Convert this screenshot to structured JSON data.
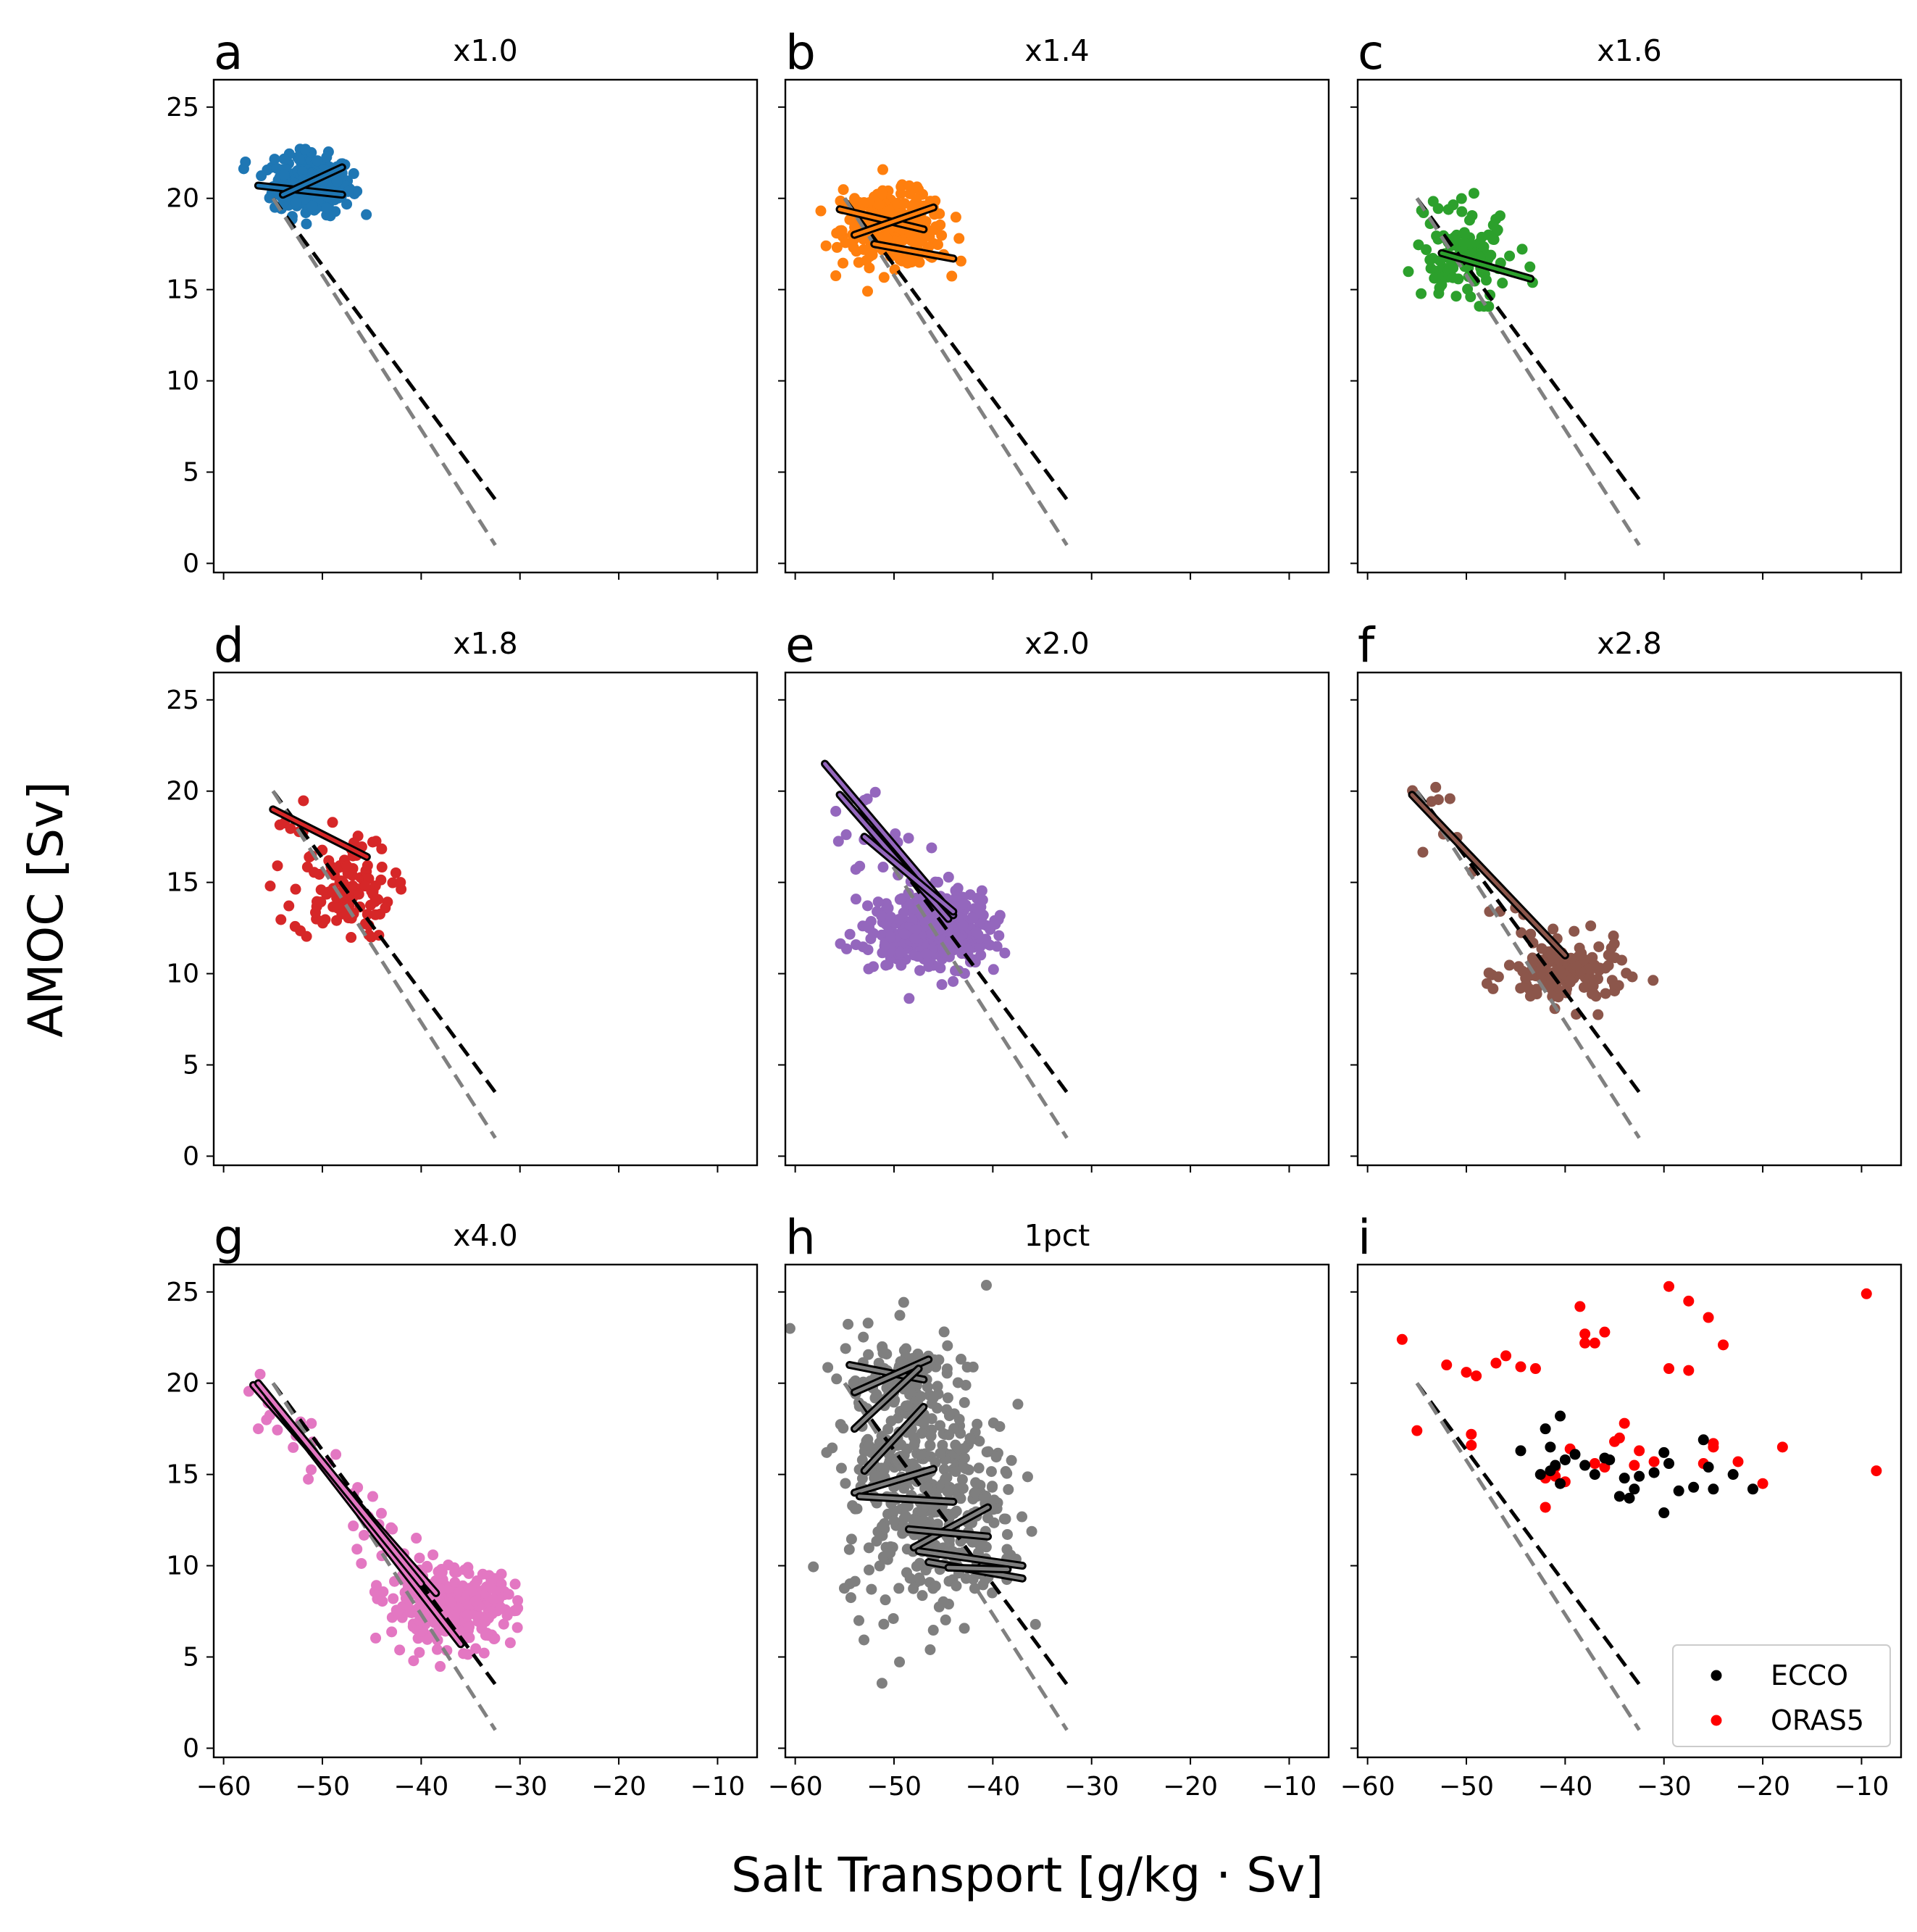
{
  "figure": {
    "xlabel": "Salt Transport [g/kg · Sv]",
    "ylabel": "AMOC [Sv]"
  },
  "chart_data": {
    "type": "scatter",
    "xlim": [
      -61,
      -6
    ],
    "ylim": [
      -0.5,
      26.5
    ],
    "x_ticks": [
      -60,
      -50,
      -40,
      -30,
      -20,
      -10
    ],
    "y_ticks": [
      0,
      5,
      10,
      15,
      20,
      25
    ],
    "x_tick_labels": [
      "−60",
      "−50",
      "−40",
      "−30",
      "−20",
      "−10"
    ],
    "y_tick_labels": [
      "0",
      "5",
      "10",
      "15",
      "20",
      "25"
    ],
    "reference_lines": [
      {
        "style": "dashed",
        "color": "#000000",
        "x": [
          -55,
          -32.5
        ],
        "y": [
          20.0,
          3.5
        ]
      },
      {
        "style": "dashed",
        "color": "#808080",
        "x": [
          -55,
          -32.5
        ],
        "y": [
          20.0,
          1.0
        ]
      }
    ],
    "panels": [
      {
        "letter": "a",
        "title": "x1.0",
        "color": "#1f77b4",
        "cluster": {
          "cx": -51,
          "cy": 20.7,
          "sx": 2.0,
          "sy": 0.8,
          "n": 220
        },
        "segments": [
          [
            -56.5,
            20.7,
            -48,
            20.2
          ],
          [
            -54,
            20.2,
            -48,
            21.7
          ]
        ]
      },
      {
        "letter": "b",
        "title": "x1.4",
        "color": "#ff7f0e",
        "cluster": {
          "cx": -50,
          "cy": 18.3,
          "sx": 2.6,
          "sy": 1.0,
          "n": 240
        },
        "segments": [
          [
            -55.5,
            19.4,
            -47,
            18.3
          ],
          [
            -54,
            18.0,
            -46,
            19.5
          ],
          [
            -52,
            17.5,
            -44,
            16.7
          ]
        ]
      },
      {
        "letter": "c",
        "title": "x1.6",
        "color": "#2ca02c",
        "cluster": {
          "cx": -50.5,
          "cy": 17.0,
          "sx": 2.4,
          "sy": 1.4,
          "n": 110
        },
        "segments": [
          [
            -52.5,
            17.0,
            -43.5,
            15.6
          ]
        ]
      },
      {
        "letter": "d",
        "title": "x1.8",
        "color": "#d62728",
        "cluster": {
          "cx": -48,
          "cy": 14.5,
          "sx": 2.5,
          "sy": 1.3,
          "n": 110
        },
        "segments": [
          [
            -55,
            19.0,
            -45.5,
            16.4
          ]
        ]
      },
      {
        "letter": "e",
        "title": "x2.0",
        "color": "#9467bd",
        "cluster": {
          "cx": -46,
          "cy": 12.4,
          "sx": 3.0,
          "sy": 1.0,
          "n": 380
        },
        "segments": [
          [
            -57,
            21.5,
            -44,
            13.2
          ],
          [
            -55.5,
            19.8,
            -44.5,
            13.0
          ],
          [
            -53,
            17.5,
            -44,
            13.4
          ]
        ]
      },
      {
        "letter": "f",
        "title": "x2.8",
        "color": "#8c564b",
        "cluster": {
          "cx": -40,
          "cy": 10.0,
          "sx": 3.0,
          "sy": 0.9,
          "n": 140
        },
        "segments": [
          [
            -55.5,
            19.8,
            -40,
            11.0
          ]
        ]
      },
      {
        "letter": "g",
        "title": "x4.0",
        "color": "#e377c2",
        "cluster": {
          "cx": -37,
          "cy": 7.8,
          "sx": 3.2,
          "sy": 1.0,
          "n": 320
        },
        "segments": [
          [
            -57,
            19.9,
            -38.5,
            8.5
          ],
          [
            -55.5,
            19.3,
            -36,
            5.7
          ],
          [
            -56.5,
            20.0,
            -40,
            9.0
          ]
        ]
      },
      {
        "letter": "h",
        "title": "1pct",
        "color": "#7f7f7f",
        "cluster": {
          "cx": -47,
          "cy": 15.0,
          "sx": 4.0,
          "sy": 3.8,
          "n": 380
        },
        "segments": [
          [
            -54.5,
            21.0,
            -47,
            20.2
          ],
          [
            -54,
            19.5,
            -46.5,
            21.3
          ],
          [
            -54,
            17.5,
            -47.5,
            20.8
          ],
          [
            -53,
            15.2,
            -47,
            18.7
          ],
          [
            -54,
            14.0,
            -46,
            15.3
          ],
          [
            -53.5,
            13.8,
            -44,
            13.5
          ],
          [
            -48,
            11.0,
            -40.5,
            13.2
          ],
          [
            -48.5,
            12.0,
            -40.5,
            11.6
          ],
          [
            -47.5,
            10.8,
            -37,
            10.0
          ],
          [
            -46.5,
            10.2,
            -37,
            9.3
          ],
          [
            -44.5,
            9.9,
            -38.5,
            9.8
          ]
        ]
      }
    ],
    "panel_i": {
      "letter": "i",
      "title": "",
      "legend": [
        "ECCO",
        "ORAS5"
      ],
      "legend_colors": [
        "#000000",
        "#ff0000"
      ],
      "legend_position": "lower right",
      "ecco": [
        [
          -42,
          17.5
        ],
        [
          -40.5,
          18.2
        ],
        [
          -41.5,
          16.5
        ],
        [
          -44.5,
          16.3
        ],
        [
          -40,
          15.8
        ],
        [
          -41,
          15.5
        ],
        [
          -39,
          16.1
        ],
        [
          -42.5,
          15.0
        ],
        [
          -40.5,
          14.5
        ],
        [
          -37,
          15.0
        ],
        [
          -35.5,
          15.8
        ],
        [
          -34,
          14.8
        ],
        [
          -33,
          14.2
        ],
        [
          -32.5,
          14.9
        ],
        [
          -31,
          15.1
        ],
        [
          -30,
          16.2
        ],
        [
          -29.5,
          15.6
        ],
        [
          -30,
          12.9
        ],
        [
          -28.5,
          14.1
        ],
        [
          -27,
          14.3
        ],
        [
          -26,
          16.9
        ],
        [
          -25.5,
          15.4
        ],
        [
          -25,
          14.2
        ],
        [
          -23,
          15.0
        ],
        [
          -21,
          14.2
        ],
        [
          -36,
          15.9
        ],
        [
          -34.5,
          13.8
        ],
        [
          -33.5,
          13.7
        ],
        [
          -38,
          15.5
        ],
        [
          -41.5,
          15.2
        ]
      ],
      "oras5": [
        [
          -56.5,
          22.4
        ],
        [
          -55,
          17.4
        ],
        [
          -52,
          21.0
        ],
        [
          -50,
          20.6
        ],
        [
          -49,
          20.4
        ],
        [
          -47,
          21.1
        ],
        [
          -46,
          21.5
        ],
        [
          -44.5,
          20.9
        ],
        [
          -43,
          20.8
        ],
        [
          -49.5,
          17.2
        ],
        [
          -49.5,
          16.6
        ],
        [
          -38.5,
          24.2
        ],
        [
          -38,
          22.7
        ],
        [
          -38,
          22.2
        ],
        [
          -36,
          22.8
        ],
        [
          -37,
          22.2
        ],
        [
          -29.5,
          25.3
        ],
        [
          -27.5,
          24.5
        ],
        [
          -25.5,
          23.6
        ],
        [
          -24,
          22.1
        ],
        [
          -29.5,
          20.8
        ],
        [
          -27.5,
          20.7
        ],
        [
          -42,
          14.8
        ],
        [
          -42,
          13.2
        ],
        [
          -39.5,
          16.4
        ],
        [
          -37,
          15.6
        ],
        [
          -35,
          16.8
        ],
        [
          -34,
          17.8
        ],
        [
          -34.5,
          17.0
        ],
        [
          -32.5,
          16.3
        ],
        [
          -31,
          15.7
        ],
        [
          -36,
          15.4
        ],
        [
          -33,
          15.5
        ],
        [
          -41,
          15.4
        ],
        [
          -40,
          14.6
        ],
        [
          -26,
          15.6
        ],
        [
          -25,
          16.5
        ],
        [
          -25,
          16.7
        ],
        [
          -22.5,
          15.7
        ],
        [
          -20,
          14.5
        ],
        [
          -18,
          16.5
        ],
        [
          -9.5,
          24.9
        ],
        [
          -8.5,
          15.2
        ],
        [
          -41,
          14.9
        ]
      ]
    }
  }
}
